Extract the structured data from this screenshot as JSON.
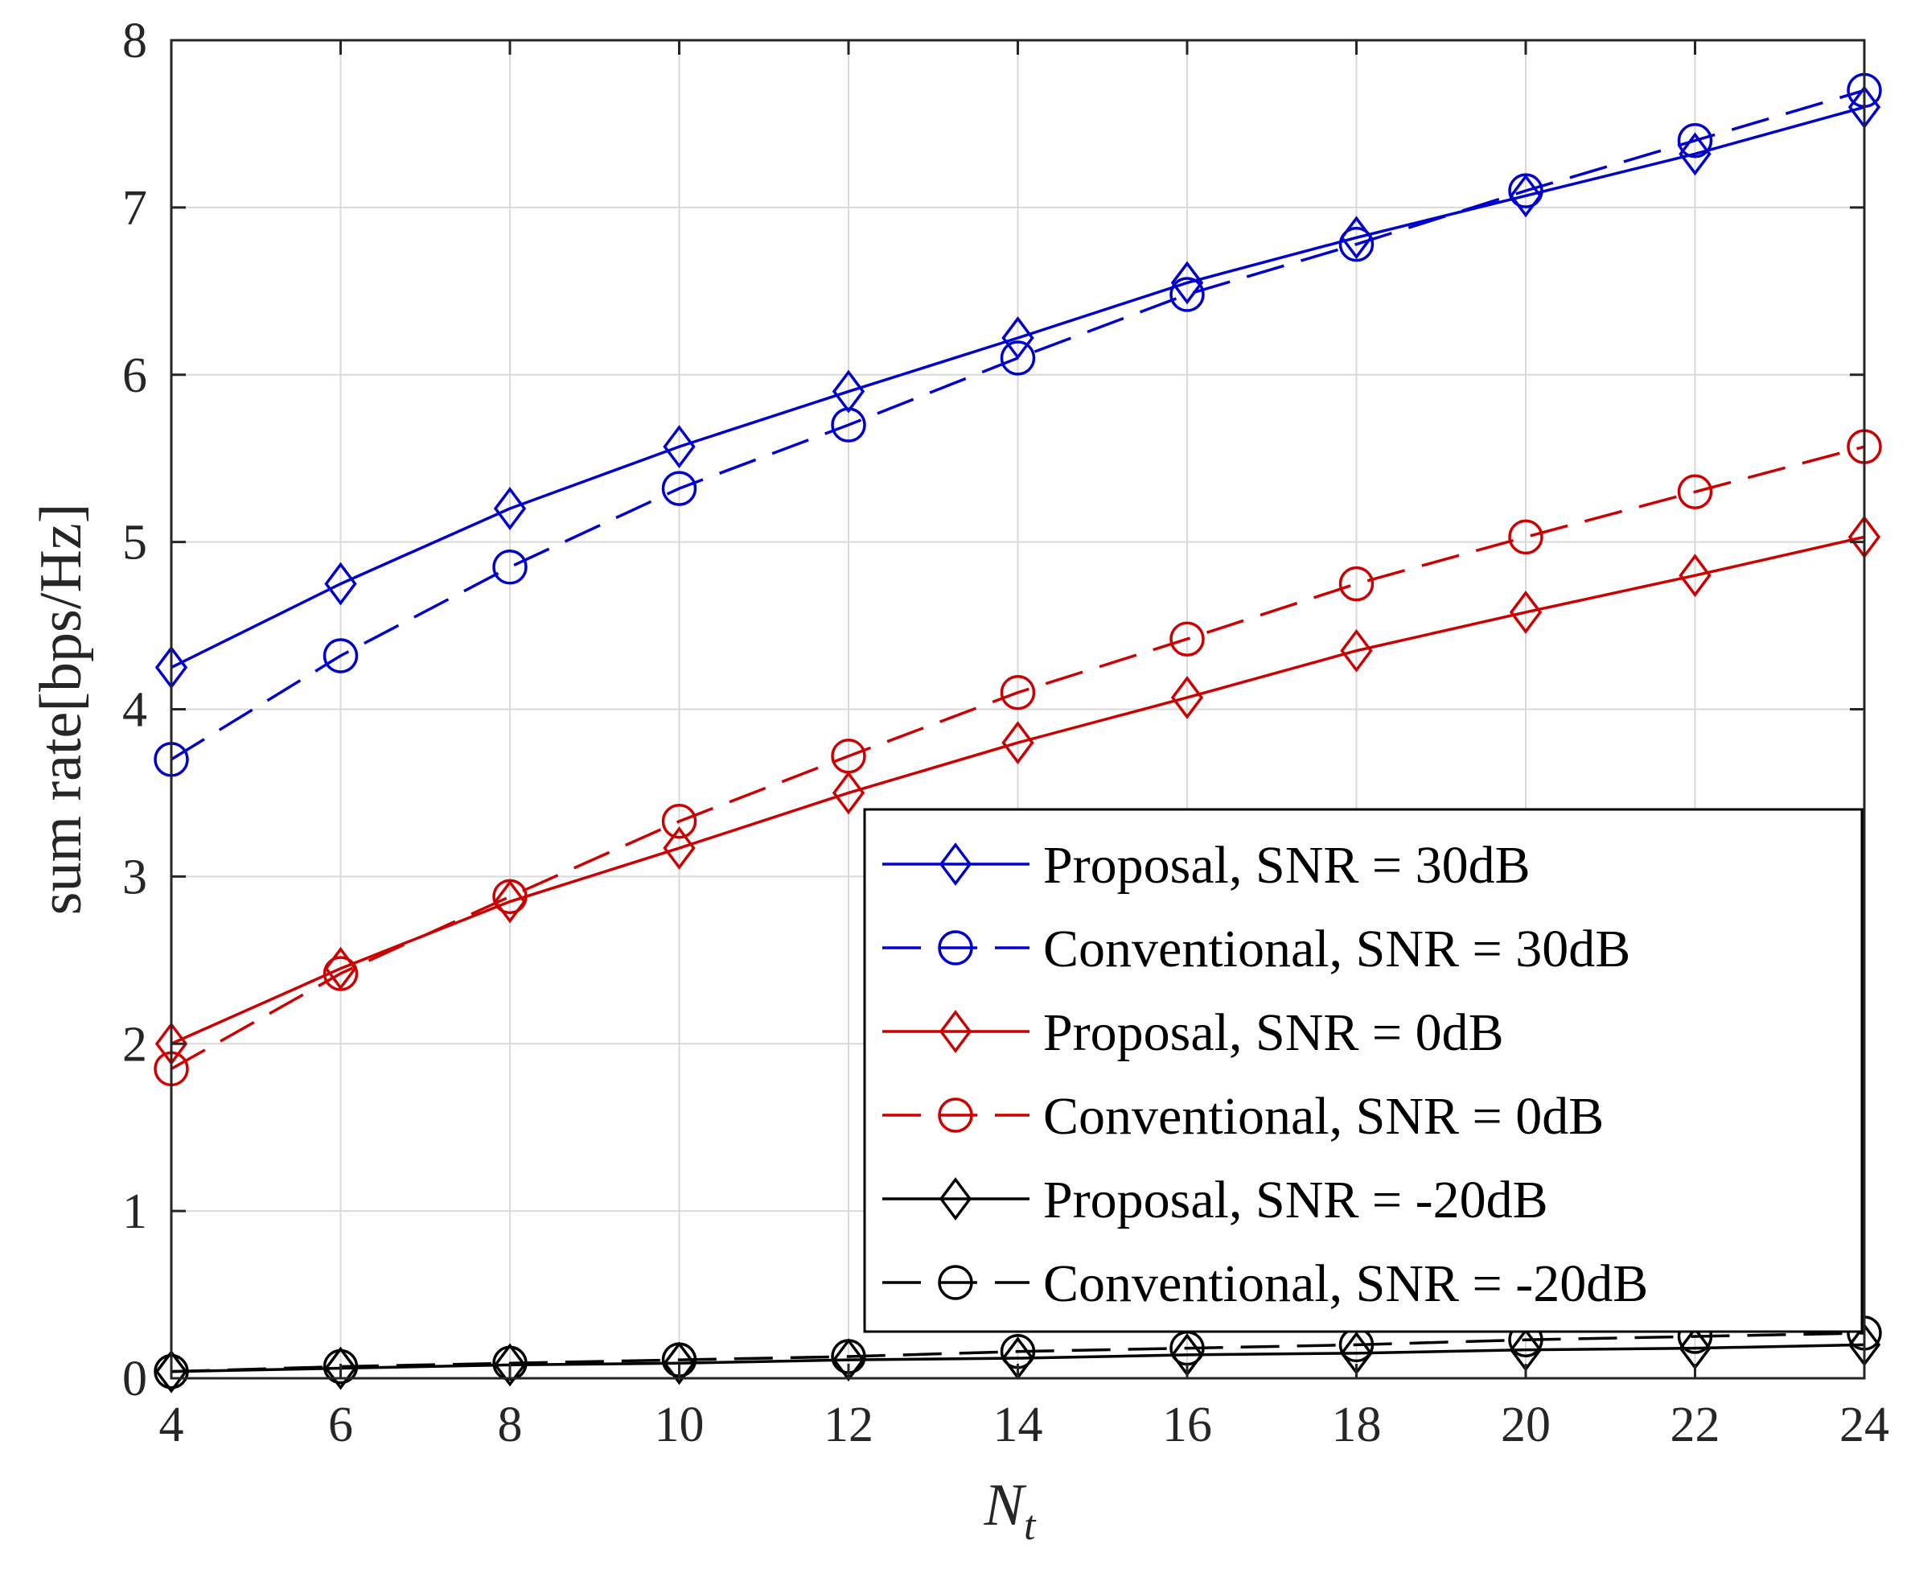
{
  "chart_data": {
    "type": "line",
    "title": "",
    "xlabel": "N",
    "xlabel_subscript": "t",
    "ylabel": "sum rate[bps/Hz]",
    "xlim": [
      4,
      24
    ],
    "ylim": [
      0,
      8
    ],
    "x_ticks": [
      "4",
      "6",
      "8",
      "10",
      "12",
      "14",
      "16",
      "18",
      "20",
      "22",
      "24"
    ],
    "y_ticks": [
      "0",
      "1",
      "2",
      "3",
      "4",
      "5",
      "6",
      "7",
      "8"
    ],
    "grid": true,
    "legend_position": "bottom-right",
    "x": [
      4,
      6,
      8,
      10,
      12,
      14,
      16,
      18,
      20,
      22,
      24
    ],
    "series": [
      {
        "name": "Proposal, SNR = 30dB",
        "color": "#0000cc",
        "marker": "diamond",
        "linestyle": "solid",
        "values": [
          4.25,
          4.75,
          5.2,
          5.57,
          5.9,
          6.22,
          6.55,
          6.82,
          7.07,
          7.32,
          7.6
        ]
      },
      {
        "name": "Conventional, SNR = 30dB",
        "color": "#0000cc",
        "marker": "circle",
        "linestyle": "dashed",
        "values": [
          3.7,
          4.32,
          4.85,
          5.32,
          5.7,
          6.1,
          6.48,
          6.78,
          7.1,
          7.4,
          7.7
        ]
      },
      {
        "name": "Proposal, SNR = 0dB",
        "color": "#cc0000",
        "marker": "diamond",
        "linestyle": "solid",
        "values": [
          2.0,
          2.45,
          2.85,
          3.17,
          3.5,
          3.8,
          4.07,
          4.35,
          4.58,
          4.8,
          5.03
        ]
      },
      {
        "name": "Conventional, SNR = 0dB",
        "color": "#cc0000",
        "marker": "circle",
        "linestyle": "dashed",
        "values": [
          1.85,
          2.42,
          2.88,
          3.33,
          3.72,
          4.1,
          4.42,
          4.75,
          5.03,
          5.3,
          5.57
        ]
      },
      {
        "name": "Proposal, SNR = -20dB",
        "color": "#000000",
        "marker": "diamond",
        "linestyle": "solid",
        "values": [
          0.04,
          0.06,
          0.08,
          0.09,
          0.11,
          0.12,
          0.14,
          0.15,
          0.17,
          0.18,
          0.2
        ]
      },
      {
        "name": "Conventional, SNR = -20dB",
        "color": "#000000",
        "marker": "circle",
        "linestyle": "dashed",
        "values": [
          0.04,
          0.07,
          0.09,
          0.11,
          0.13,
          0.16,
          0.18,
          0.2,
          0.23,
          0.25,
          0.27
        ]
      }
    ]
  }
}
